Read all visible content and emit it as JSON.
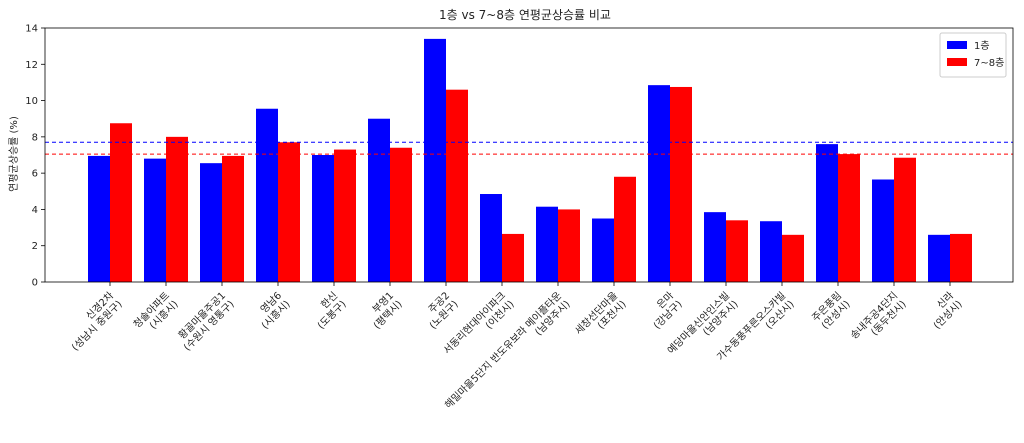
{
  "chart_data": {
    "type": "bar",
    "title": "1층 vs 7~8층 연평균상승률 비교",
    "xlabel": "",
    "ylabel": "연평균상승률 (%)",
    "ylim": [
      0,
      14
    ],
    "yticks": [
      0,
      2,
      4,
      6,
      8,
      10,
      12,
      14
    ],
    "grid": false,
    "legend_position": "top-right",
    "categories": [
      "신경2차\n(성남시 중원구)",
      "청솔아파트\n(시흥시)",
      "황골마을주공1\n(수원시 영통구)",
      "영남6\n(시흥시)",
      "한신\n(도봉구)",
      "부영1\n(평택시)",
      "주공2\n(노원구)",
      "서동리현대아이파크\n(이천시)",
      "해밀마을5단지 반도유보라 메이플타운\n(남양주시)",
      "세창선단마을\n(포천시)",
      "은마\n(강남구)",
      "예당마을신안인스빌\n(남양주시)",
      "가수동풍푸른오스카빌\n(오산시)",
      "주은풍림\n(안성시)",
      "송내주공4단지\n(동두천시)",
      "신라\n(안성시)"
    ],
    "series": [
      {
        "name": "1층",
        "color": "#0000ff",
        "values": [
          6.95,
          6.8,
          6.55,
          9.55,
          7.0,
          9.0,
          13.4,
          4.85,
          4.15,
          3.5,
          10.85,
          3.85,
          3.35,
          7.6,
          5.65,
          2.6
        ]
      },
      {
        "name": "7~8층",
        "color": "#ff0000",
        "values": [
          8.75,
          8.0,
          6.95,
          7.7,
          7.3,
          7.4,
          10.6,
          2.65,
          4.0,
          5.8,
          10.75,
          3.4,
          2.6,
          7.05,
          6.85,
          2.65
        ]
      }
    ],
    "reference_lines": [
      {
        "value": 7.7,
        "color": "#0000ff",
        "style": "dashed"
      },
      {
        "value": 7.05,
        "color": "#ff0000",
        "style": "dashed"
      }
    ]
  }
}
